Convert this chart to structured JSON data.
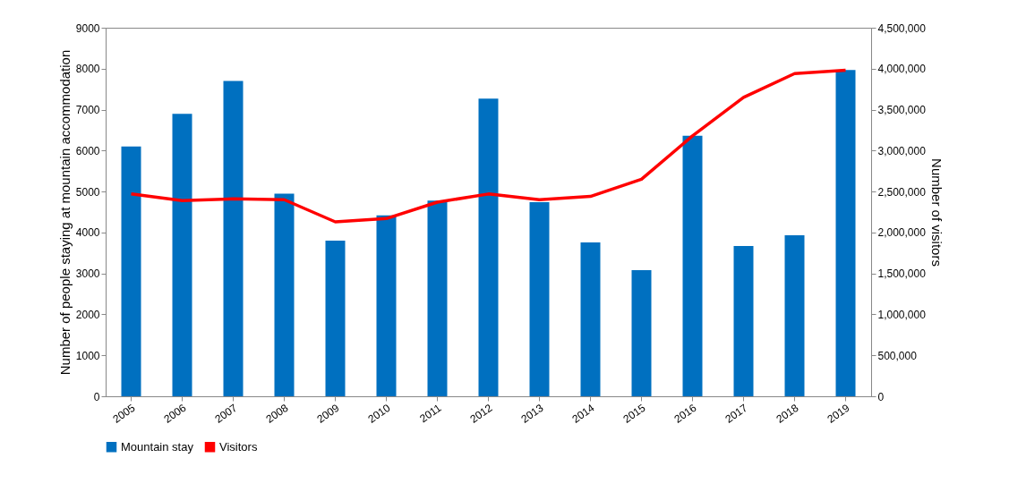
{
  "chart_data": {
    "type": "bar",
    "ylabel": "Number of people staying at mountain accommodation",
    "y2label": "Number of visitors",
    "categories": [
      "2005",
      "2006",
      "2007",
      "2008",
      "2009",
      "2010",
      "2011",
      "2012",
      "2013",
      "2014",
      "2015",
      "2016",
      "2017",
      "2018",
      "2019"
    ],
    "series": [
      {
        "name": "Mountain stay",
        "color": "#0070c0",
        "values": [
          6100,
          6900,
          7700,
          4950,
          3800,
          4420,
          4780,
          7270,
          4740,
          3760,
          3080,
          6360,
          3670,
          3930,
          7970
        ]
      },
      {
        "name": "Visitors",
        "type": "line",
        "axis": "y2",
        "color": "#ff0000",
        "values": [
          2470000,
          2390000,
          2410000,
          2400000,
          2130000,
          2170000,
          2370000,
          2470000,
          2400000,
          2440000,
          2650000,
          3180000,
          3650000,
          3940000,
          3980000
        ]
      }
    ],
    "ylim": [
      0,
      9000
    ],
    "yticks": [
      0,
      1000,
      2000,
      3000,
      4000,
      5000,
      6000,
      7000,
      8000,
      9000
    ],
    "y2lim": [
      0,
      4500000
    ],
    "y2ticks": [
      {
        "value": 0,
        "label": "0"
      },
      {
        "value": 500000,
        "label": "500,000"
      },
      {
        "value": 1000000,
        "label": "1,000,000"
      },
      {
        "value": 1500000,
        "label": "1,500,000"
      },
      {
        "value": 2000000,
        "label": "2,000,000"
      },
      {
        "value": 2500000,
        "label": "2,500,000"
      },
      {
        "value": 3000000,
        "label": "3,000,000"
      },
      {
        "value": 3500000,
        "label": "3,500,000"
      },
      {
        "value": 4000000,
        "label": "4,000,000"
      },
      {
        "value": 4500000,
        "label": "4,500,000"
      }
    ],
    "legend": "bottom",
    "grid": false
  }
}
